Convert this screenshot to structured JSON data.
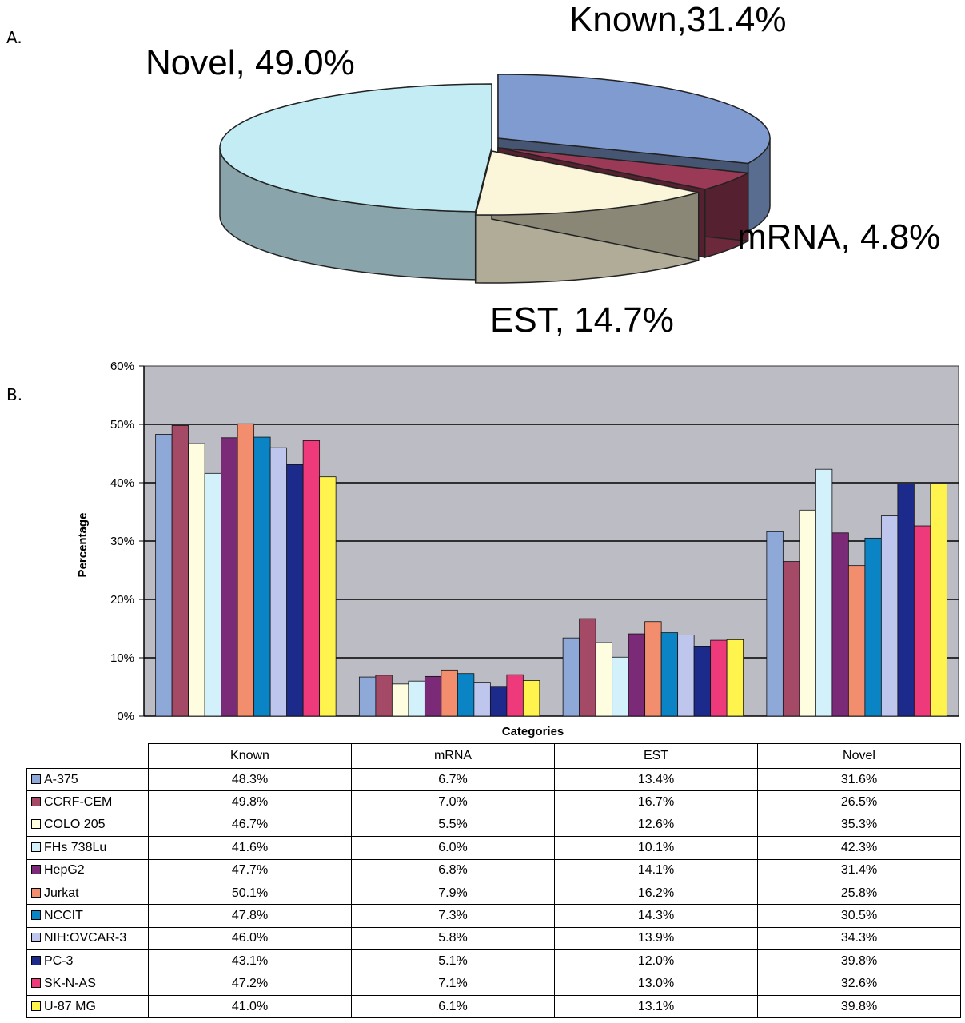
{
  "panel_a_label": "A.",
  "panel_b_label": "B.",
  "chart_data": [
    {
      "type": "pie",
      "slices": [
        {
          "label": "Known,31.4%",
          "value": 31.4,
          "color": "#7f9bcf"
        },
        {
          "label": "mRNA, 4.8%",
          "value": 4.8,
          "color": "#9a3a56"
        },
        {
          "label": "EST, 14.7%",
          "value": 14.7,
          "color": "#fbf6d9"
        },
        {
          "label": "Novel, 49.0%",
          "value": 49.0,
          "color": "#c3ecf4"
        }
      ]
    },
    {
      "type": "bar",
      "categories": [
        "Known",
        "mRNA",
        "EST",
        "Novel"
      ],
      "xlabel": "Categories",
      "ylabel": "Percentage",
      "ylim": [
        0,
        60
      ],
      "yticks": [
        "0%",
        "10%",
        "20%",
        "30%",
        "40%",
        "50%",
        "60%"
      ],
      "grid": true,
      "plot_background": "#bcbcc4",
      "series": [
        {
          "name": "A-375",
          "color": "#8ea8d8",
          "values": [
            48.3,
            6.7,
            13.4,
            31.6
          ]
        },
        {
          "name": "CCRF-CEM",
          "color": "#a44a67",
          "values": [
            49.8,
            7.0,
            16.7,
            26.5
          ]
        },
        {
          "name": "COLO 205",
          "color": "#fffde0",
          "values": [
            46.7,
            5.5,
            12.6,
            35.3
          ]
        },
        {
          "name": "FHs 738Lu",
          "color": "#d3f1fb",
          "values": [
            41.6,
            6.0,
            10.1,
            42.3
          ]
        },
        {
          "name": "HepG2",
          "color": "#7b2a78",
          "values": [
            47.7,
            6.8,
            14.1,
            31.4
          ]
        },
        {
          "name": "Jurkat",
          "color": "#f28e6e",
          "values": [
            50.1,
            7.9,
            16.2,
            25.8
          ]
        },
        {
          "name": "NCCIT",
          "color": "#0a84c4",
          "values": [
            47.8,
            7.3,
            14.3,
            30.5
          ]
        },
        {
          "name": "NIH:OVCAR-3",
          "color": "#bfc6ee",
          "values": [
            46.0,
            5.8,
            13.9,
            34.3
          ]
        },
        {
          "name": "PC-3",
          "color": "#1c2a8c",
          "values": [
            43.1,
            5.1,
            12.0,
            39.8
          ]
        },
        {
          "name": "SK-N-AS",
          "color": "#ee3a7a",
          "values": [
            47.2,
            7.1,
            13.0,
            32.6
          ]
        },
        {
          "name": "U-87 MG",
          "color": "#fff44e",
          "values": [
            41.0,
            6.1,
            13.1,
            39.8
          ]
        }
      ]
    }
  ],
  "table": {
    "columns": [
      "Known",
      "mRNA",
      "EST",
      "Novel"
    ],
    "rows": [
      {
        "label": "A-375",
        "values": [
          "48.3%",
          "6.7%",
          "13.4%",
          "31.6%"
        ]
      },
      {
        "label": "CCRF-CEM",
        "values": [
          "49.8%",
          "7.0%",
          "16.7%",
          "26.5%"
        ]
      },
      {
        "label": "COLO 205",
        "values": [
          "46.7%",
          "5.5%",
          "12.6%",
          "35.3%"
        ]
      },
      {
        "label": "FHs 738Lu",
        "values": [
          "41.6%",
          "6.0%",
          "10.1%",
          "42.3%"
        ]
      },
      {
        "label": "HepG2",
        "values": [
          "47.7%",
          "6.8%",
          "14.1%",
          "31.4%"
        ]
      },
      {
        "label": "Jurkat",
        "values": [
          "50.1%",
          "7.9%",
          "16.2%",
          "25.8%"
        ]
      },
      {
        "label": "NCCIT",
        "values": [
          "47.8%",
          "7.3%",
          "14.3%",
          "30.5%"
        ]
      },
      {
        "label": "NIH:OVCAR-3",
        "values": [
          "46.0%",
          "5.8%",
          "13.9%",
          "34.3%"
        ]
      },
      {
        "label": "PC-3",
        "values": [
          "43.1%",
          "5.1%",
          "12.0%",
          "39.8%"
        ]
      },
      {
        "label": "SK-N-AS",
        "values": [
          "47.2%",
          "7.1%",
          "13.0%",
          "32.6%"
        ]
      },
      {
        "label": "U-87 MG",
        "values": [
          "41.0%",
          "6.1%",
          "13.1%",
          "39.8%"
        ]
      }
    ]
  }
}
